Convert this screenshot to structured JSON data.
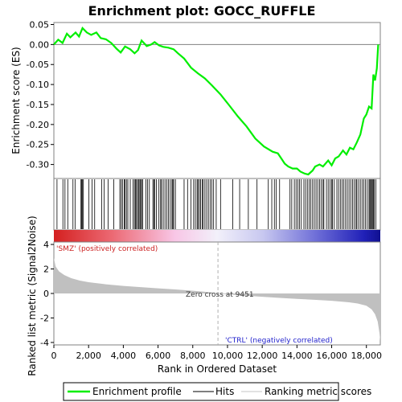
{
  "chart_data": {
    "type": "line",
    "title": "Enrichment plot: GOCC_RUFFLE",
    "xlabel": "Rank in Ordered Dataset",
    "xlim": [
      0,
      18800
    ],
    "x_ticks": [
      0,
      2000,
      4000,
      6000,
      8000,
      10000,
      12000,
      14000,
      16000,
      18000
    ],
    "x_tick_labels": [
      "0",
      "2,000",
      "4,000",
      "6,000",
      "8,000",
      "10,000",
      "12,000",
      "14,000",
      "16,000",
      "18,000"
    ],
    "es_panel": {
      "ylabel": "Enrichment score (ES)",
      "ylim": [
        -0.335,
        0.055
      ],
      "y_ticks": [
        0.05,
        0.0,
        -0.05,
        -0.1,
        -0.15,
        -0.2,
        -0.25,
        -0.3
      ],
      "y_tick_labels": [
        "0.05",
        "0.00",
        "-0.05",
        "-0.10",
        "-0.15",
        "-0.20",
        "-0.25",
        "-0.30"
      ],
      "series": [
        {
          "name": "Enrichment profile",
          "color": "#00ee00",
          "x": [
            0,
            250,
            500,
            750,
            950,
            1250,
            1450,
            1650,
            1900,
            2150,
            2450,
            2700,
            3000,
            3300,
            3600,
            3850,
            4100,
            4400,
            4650,
            4850,
            5050,
            5350,
            5600,
            5800,
            6050,
            6300,
            6600,
            6900,
            7150,
            7500,
            7900,
            8300,
            8700,
            9100,
            9600,
            10100,
            10600,
            11100,
            11600,
            12100,
            12600,
            12900,
            13100,
            13300,
            13500,
            13750,
            14000,
            14200,
            14450,
            14650,
            14900,
            15050,
            15300,
            15500,
            15800,
            16000,
            16200,
            16400,
            16650,
            16850,
            17050,
            17250,
            17450,
            17650,
            17850,
            18000,
            18150,
            18300,
            18400,
            18500,
            18600,
            18680
          ],
          "y": [
            0.0,
            0.012,
            0.004,
            0.027,
            0.018,
            0.03,
            0.02,
            0.041,
            0.03,
            0.024,
            0.03,
            0.016,
            0.013,
            0.004,
            -0.01,
            -0.02,
            -0.005,
            -0.012,
            -0.022,
            -0.014,
            0.01,
            -0.004,
            0.0,
            0.006,
            -0.002,
            -0.006,
            -0.008,
            -0.012,
            -0.022,
            -0.035,
            -0.058,
            -0.072,
            -0.085,
            -0.102,
            -0.125,
            -0.152,
            -0.18,
            -0.205,
            -0.235,
            -0.255,
            -0.268,
            -0.272,
            -0.285,
            -0.298,
            -0.305,
            -0.31,
            -0.31,
            -0.318,
            -0.323,
            -0.325,
            -0.315,
            -0.305,
            -0.3,
            -0.305,
            -0.29,
            -0.302,
            -0.285,
            -0.28,
            -0.265,
            -0.275,
            -0.258,
            -0.262,
            -0.245,
            -0.225,
            -0.185,
            -0.175,
            -0.155,
            -0.16,
            -0.075,
            -0.09,
            -0.06,
            0.0
          ]
        }
      ]
    },
    "hits_panel": {
      "name": "Hits",
      "hit_positions": [
        180,
        520,
        640,
        800,
        1100,
        1220,
        1560,
        1600,
        1650,
        1700,
        2020,
        2200,
        2350,
        2750,
        2900,
        3120,
        3450,
        3800,
        3880,
        3950,
        4050,
        4100,
        4180,
        4260,
        4400,
        4560,
        4640,
        4700,
        4760,
        4820,
        4880,
        4950,
        5000,
        5050,
        5120,
        5300,
        5400,
        5500,
        5700,
        5760,
        5800,
        5900,
        6050,
        6150,
        6200,
        6300,
        6400,
        6500,
        6600,
        6700,
        6800,
        6850,
        6900,
        7000,
        7500,
        7700,
        7900,
        8050,
        8150,
        8250,
        8300,
        8380,
        8450,
        8550,
        8600,
        8700,
        8800,
        8900,
        9000,
        9100,
        9200,
        9350,
        9600,
        10300,
        10700,
        11200,
        11700,
        12350,
        12550,
        12700,
        12800,
        13000,
        13600,
        13700,
        13850,
        13950,
        14050,
        14150,
        14250,
        14400,
        14500,
        14600,
        14700,
        14800,
        14900,
        15000,
        15100,
        15200,
        15300,
        15400,
        15500,
        15550,
        15700,
        15800,
        15900,
        16000,
        16050,
        16150,
        16300,
        16400,
        16500,
        16600,
        16700,
        16800,
        16900,
        17000,
        17100,
        17200,
        17300,
        17400,
        17450,
        17550,
        17650,
        17750,
        17850,
        17950,
        18050,
        18150,
        18200,
        18250,
        18300,
        18350,
        18400,
        18450,
        18550
      ]
    },
    "rank_metric_panel": {
      "name": "Ranking metric scores",
      "ylabel": "Ranked list metric (Signal2Noise)",
      "ylim": [
        -4.2,
        4.2
      ],
      "y_ticks": [
        4,
        2,
        0,
        -2,
        -4
      ],
      "y_tick_labels": [
        "4",
        "2",
        "0",
        "-2",
        "-4"
      ],
      "x": [
        0,
        100,
        300,
        600,
        1000,
        1500,
        2000,
        3000,
        4000,
        5000,
        6000,
        7000,
        8000,
        9000,
        9451,
        10000,
        11000,
        12000,
        13000,
        14000,
        15000,
        16000,
        17000,
        17500,
        18000,
        18300,
        18500,
        18650,
        18750,
        18800
      ],
      "y": [
        2.9,
        2.2,
        1.8,
        1.5,
        1.25,
        1.05,
        0.92,
        0.75,
        0.62,
        0.52,
        0.42,
        0.33,
        0.22,
        0.1,
        0.0,
        -0.07,
        -0.18,
        -0.27,
        -0.36,
        -0.44,
        -0.52,
        -0.6,
        -0.72,
        -0.82,
        -1.0,
        -1.3,
        -1.7,
        -2.3,
        -3.2,
        -3.9
      ]
    },
    "annotations": {
      "positive_label": "'SMZ' (positively correlated)",
      "negative_label": "'CTRL' (negatively correlated)",
      "zero_cross_label": "Zero cross at 9451",
      "zero_cross_rank": 9451
    },
    "legend": {
      "placement": "bottom",
      "items": [
        {
          "label": "Enrichment profile",
          "color": "#00ee00"
        },
        {
          "label": "Hits",
          "color": "#000000"
        },
        {
          "label": "Ranking metric scores",
          "color": "#c0c0c0"
        }
      ]
    },
    "colors": {
      "positive": "#cc2222",
      "negative": "#2222cc",
      "metric_fill": "#c0c0c0"
    }
  }
}
